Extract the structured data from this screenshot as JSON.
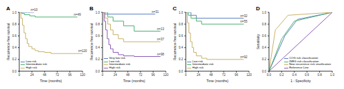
{
  "chart_data": [
    {
      "type": "line",
      "title": "A",
      "line_style": "step",
      "x_label": "Time (months)",
      "y_label": "Recurrence-free survival",
      "xlim": [
        0,
        120
      ],
      "xticks": [
        0,
        24,
        48,
        72,
        96,
        120
      ],
      "ylim": [
        0,
        1
      ],
      "yticks": [
        {
          "value": 0,
          "label": "0.0"
        },
        0.2,
        0.4,
        0.6,
        0.8,
        {
          "value": 1,
          "label": "1.0"
        }
      ],
      "grid": false,
      "legend": "lower left",
      "annotations": [
        "n=10",
        "n=49",
        "n=120"
      ],
      "series": [
        {
          "name": "Low risk",
          "color": "#5b7fc4",
          "x": [
            0,
            28
          ],
          "values": [
            1,
            1
          ]
        },
        {
          "name": "Intermediate risk",
          "color": "#4caf6e",
          "x": [
            0,
            5,
            10,
            20,
            30,
            110
          ],
          "values": [
            1,
            0.98,
            0.96,
            0.94,
            0.92,
            0.92
          ]
        },
        {
          "name": "High risk",
          "color": "#c9b26b",
          "x": [
            0,
            3,
            6,
            9,
            12,
            15,
            18,
            24,
            30,
            36,
            48,
            60,
            120
          ],
          "values": [
            1,
            0.9,
            0.78,
            0.65,
            0.55,
            0.47,
            0.42,
            0.38,
            0.35,
            0.33,
            0.32,
            0.3,
            0.3
          ]
        }
      ]
    },
    {
      "type": "line",
      "title": "B",
      "line_style": "step",
      "x_label": "Time (months)",
      "y_label": "Recurrence-free survival",
      "xlim": [
        0,
        120
      ],
      "xticks": [
        0,
        24,
        48,
        72,
        96,
        120
      ],
      "ylim": [
        0,
        1
      ],
      "yticks": [
        {
          "value": 0,
          "label": "0.0"
        },
        0.2,
        0.4,
        0.6,
        0.8,
        {
          "value": 1,
          "label": "1.0"
        }
      ],
      "grid": false,
      "legend": "lower left",
      "annotations": [
        "n=31",
        "n=13",
        "n=37",
        "n=98"
      ],
      "series": [
        {
          "name": "Very low risk",
          "color": "#5b7fc4",
          "x": [
            0,
            5,
            100
          ],
          "values": [
            1,
            0.97,
            0.97
          ]
        },
        {
          "name": "Low risk",
          "color": "#4caf6e",
          "x": [
            0,
            10,
            20,
            40,
            60,
            110
          ],
          "values": [
            1,
            0.92,
            0.85,
            0.77,
            0.68,
            0.68
          ]
        },
        {
          "name": "Intermediate risk",
          "color": "#c9b26b",
          "x": [
            0,
            5,
            10,
            15,
            20,
            30,
            40,
            110
          ],
          "values": [
            1,
            0.9,
            0.8,
            0.7,
            0.62,
            0.55,
            0.5,
            0.5
          ]
        },
        {
          "name": "High risk",
          "color": "#8e5bb5",
          "x": [
            0,
            3,
            6,
            9,
            12,
            15,
            20,
            30,
            40,
            60,
            110
          ],
          "values": [
            1,
            0.85,
            0.7,
            0.55,
            0.45,
            0.38,
            0.32,
            0.28,
            0.26,
            0.25,
            0.25
          ]
        }
      ]
    },
    {
      "type": "line",
      "title": "C",
      "line_style": "step",
      "x_label": "Time (months)",
      "y_label": "Recurrence-free survival",
      "xlim": [
        0,
        120
      ],
      "xticks": [
        0,
        24,
        48,
        72,
        96,
        120
      ],
      "ylim": [
        0,
        1
      ],
      "yticks": [
        {
          "value": 0,
          "label": "0.0"
        },
        0.2,
        0.4,
        0.6,
        0.8,
        {
          "value": 1,
          "label": "1.0"
        }
      ],
      "grid": false,
      "legend": "lower left",
      "annotations": [
        "n=32",
        "n=55",
        "n=92"
      ],
      "series": [
        {
          "name": "Low risk",
          "color": "#5b7fc4",
          "x": [
            0,
            10,
            20,
            110
          ],
          "values": [
            1,
            0.95,
            0.9,
            0.9
          ]
        },
        {
          "name": "Intermediate risk",
          "color": "#4caf6e",
          "x": [
            0,
            5,
            10,
            20,
            30,
            110
          ],
          "values": [
            1,
            0.95,
            0.9,
            0.85,
            0.8,
            0.8
          ]
        },
        {
          "name": "High risk",
          "color": "#c9b26b",
          "x": [
            0,
            3,
            6,
            9,
            12,
            15,
            20,
            30,
            40,
            110
          ],
          "values": [
            1,
            0.82,
            0.65,
            0.5,
            0.4,
            0.32,
            0.26,
            0.22,
            0.2,
            0.2
          ]
        }
      ]
    },
    {
      "type": "line",
      "title": "D",
      "line_style": "solid",
      "x_label": "1 - Specificity",
      "y_label": "Sensitivity",
      "xlim": [
        0,
        1
      ],
      "xticks": [
        {
          "value": 0,
          "label": "0.0"
        },
        0.2,
        0.4,
        0.6,
        0.8,
        {
          "value": 1,
          "label": "1.0"
        }
      ],
      "ylim": [
        0,
        1
      ],
      "yticks": [
        {
          "value": 0,
          "label": "0.0"
        },
        0.2,
        0.4,
        0.6,
        0.8,
        {
          "value": 1,
          "label": "1.0"
        }
      ],
      "grid": false,
      "legend": "lower right",
      "series": [
        {
          "name": "COG risk classification",
          "color": "#5b7fc4",
          "x": [
            0,
            0.25,
            0.45,
            1
          ],
          "values": [
            0,
            0.6,
            0.88,
            1
          ]
        },
        {
          "name": "INRG risk classification",
          "color": "#4caf6e",
          "x": [
            0,
            0.2,
            0.4,
            1
          ],
          "values": [
            0,
            0.55,
            0.85,
            1
          ]
        },
        {
          "name": "New recurrence risk stratification",
          "color": "#c9b26b",
          "x": [
            0,
            0.1,
            0.3,
            1
          ],
          "values": [
            0,
            0.7,
            0.95,
            1
          ]
        },
        {
          "name": "Reference Line",
          "color": "#8e5bb5",
          "x": [
            0,
            1
          ],
          "values": [
            0,
            1
          ]
        }
      ]
    }
  ]
}
